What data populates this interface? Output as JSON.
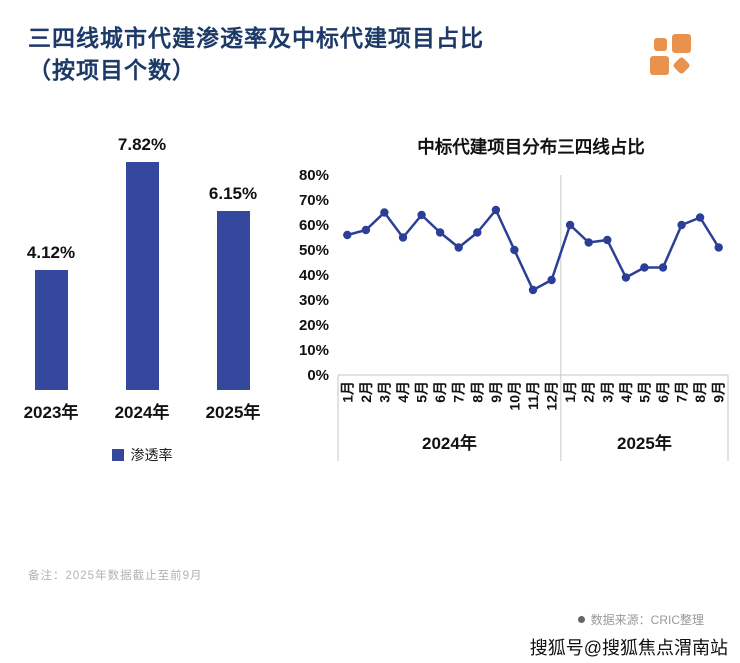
{
  "header": {
    "title_line1": "三四线城市代建渗透率及中标代建项目占比",
    "title_line2": "（按项目个数）"
  },
  "colors": {
    "title_navy": "#1d3968",
    "bar_blue": "#34489e",
    "line_blue": "#2c3f97",
    "logo_orange": "#e9924d",
    "axis_grey": "#c6c6c6"
  },
  "chart_data": [
    {
      "type": "bar",
      "name": "三四线城市代建渗透率",
      "categories": [
        "2023年",
        "2024年",
        "2025年"
      ],
      "values": [
        4.12,
        7.82,
        6.15
      ],
      "value_labels": [
        "4.12%",
        "7.82%",
        "6.15%"
      ],
      "legend_label": "渗透率",
      "ylim": [
        0,
        9
      ],
      "unit": "%",
      "grid": false
    },
    {
      "type": "line",
      "title": "中标代建项目分布三四线占比",
      "ylim": [
        0,
        80
      ],
      "ytick_step": 10,
      "ytick_suffix": "%",
      "grid": false,
      "groups": [
        {
          "label": "2024年",
          "categories": [
            "1月",
            "2月",
            "3月",
            "4月",
            "5月",
            "6月",
            "7月",
            "8月",
            "9月",
            "10月",
            "11月",
            "12月"
          ],
          "values": [
            56,
            58,
            65,
            55,
            64,
            57,
            51,
            57,
            66,
            50,
            34,
            38
          ]
        },
        {
          "label": "2025年",
          "categories": [
            "1月",
            "2月",
            "3月",
            "4月",
            "5月",
            "6月",
            "7月",
            "8月",
            "9月"
          ],
          "values": [
            60,
            53,
            54,
            39,
            43,
            43,
            60,
            63,
            51
          ]
        }
      ]
    }
  ],
  "footer": {
    "note": "备注：2025年数据截止至前9月",
    "source": "数据来源：CRIC整理",
    "watermark": "搜狐号@搜狐焦点渭南站"
  }
}
